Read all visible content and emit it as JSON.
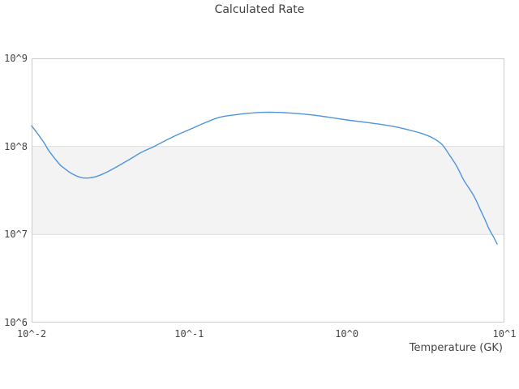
{
  "chart_data": {
    "type": "line",
    "title": "Calculated Rate",
    "xlabel": "Temperature (GK)",
    "ylabel": "",
    "xscale": "log",
    "yscale": "log",
    "xlim": [
      0.01,
      10
    ],
    "ylim": [
      1000000.0,
      1000000000.0
    ],
    "grid": "horizontal-only",
    "legend": "none",
    "x_ticks": [
      {
        "value": 0.01,
        "label": "10^-2"
      },
      {
        "value": 0.1,
        "label": "10^-1"
      },
      {
        "value": 1,
        "label": "10^0"
      },
      {
        "value": 10,
        "label": "10^1"
      }
    ],
    "y_ticks": [
      {
        "value": 1000000.0,
        "label": "10^6"
      },
      {
        "value": 10000000.0,
        "label": "10^7"
      },
      {
        "value": 100000000.0,
        "label": "10^8"
      },
      {
        "value": 1000000000.0,
        "label": "10^9"
      }
    ],
    "band": {
      "axis": "y",
      "from": 10000000.0,
      "to": 100000000.0
    },
    "series": [
      {
        "name": "calculated-rate",
        "color": "#4f94dd",
        "points": [
          [
            0.01,
            172000000.0
          ],
          [
            0.011,
            137000000.0
          ],
          [
            0.012,
            110000000.0
          ],
          [
            0.013,
            87000000.0
          ],
          [
            0.015,
            63000000.0
          ],
          [
            0.016,
            57000000.0
          ],
          [
            0.018,
            49000000.0
          ],
          [
            0.021,
            44000000.0
          ],
          [
            0.025,
            45000000.0
          ],
          [
            0.03,
            51000000.0
          ],
          [
            0.04,
            68000000.0
          ],
          [
            0.05,
            86000000.0
          ],
          [
            0.06,
            100000000.0
          ],
          [
            0.08,
            130000000.0
          ],
          [
            0.1,
            155000000.0
          ],
          [
            0.15,
            210000000.0
          ],
          [
            0.2,
            230000000.0
          ],
          [
            0.25,
            240000000.0
          ],
          [
            0.3,
            244000000.0
          ],
          [
            0.35,
            244000000.0
          ],
          [
            0.4,
            242000000.0
          ],
          [
            0.5,
            235000000.0
          ],
          [
            0.6,
            228000000.0
          ],
          [
            0.7,
            220000000.0
          ],
          [
            0.8,
            212000000.0
          ],
          [
            1.0,
            200000000.0
          ],
          [
            1.5,
            182000000.0
          ],
          [
            2.0,
            168000000.0
          ],
          [
            2.5,
            153000000.0
          ],
          [
            3.0,
            140000000.0
          ],
          [
            3.5,
            125000000.0
          ],
          [
            4.0,
            106000000.0
          ],
          [
            4.5,
            79000000.0
          ],
          [
            5.0,
            59000000.0
          ],
          [
            5.5,
            42000000.0
          ],
          [
            6.0,
            33000000.0
          ],
          [
            6.5,
            26000000.0
          ],
          [
            7.0,
            19500000.0
          ],
          [
            7.5,
            15000000.0
          ],
          [
            8.0,
            11500000.0
          ],
          [
            8.5,
            9500000.0
          ],
          [
            9.0,
            7800000.0
          ]
        ]
      }
    ]
  },
  "colors": {
    "line": "#4f94dd",
    "band_fill": "#f3f3f3",
    "grid": "#e0e0e0",
    "frame": "#cccccc",
    "text": "#444444"
  }
}
